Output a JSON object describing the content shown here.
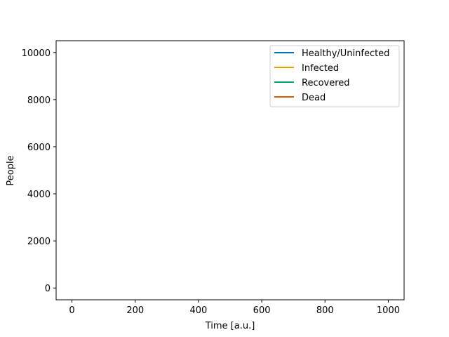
{
  "chart_data": {
    "type": "line",
    "title": "",
    "xlabel": "Time [a.u.]",
    "ylabel": "People",
    "xlim": [
      -50,
      1050
    ],
    "ylim": [
      -500,
      10500
    ],
    "xticks": [
      0,
      200,
      400,
      600,
      800,
      1000
    ],
    "yticks": [
      0,
      2000,
      4000,
      6000,
      8000,
      10000
    ],
    "grid": false,
    "legend_position": "top-right",
    "series": [
      {
        "name": "Healthy/Uninfected",
        "color": "#0072B2",
        "x": [],
        "y": []
      },
      {
        "name": "Infected",
        "color": "#E69F00",
        "x": [],
        "y": []
      },
      {
        "name": "Recovered",
        "color": "#009E73",
        "x": [],
        "y": []
      },
      {
        "name": "Dead",
        "color": "#D55E00",
        "x": [],
        "y": []
      }
    ]
  }
}
